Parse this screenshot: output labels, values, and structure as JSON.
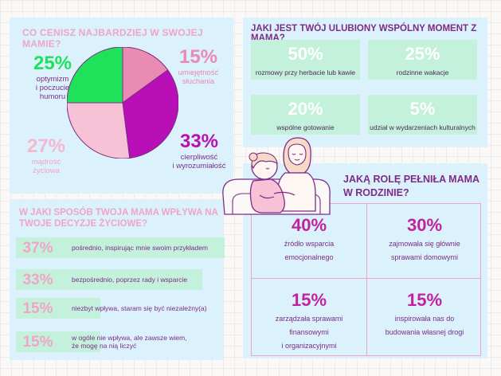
{
  "pie_panel": {
    "question": "CO CENISZ NAJBARDZIEJ W SWOJEJ MAMIE?",
    "slices": [
      {
        "pct": "25%",
        "label_lines": [
          "optymizm",
          "i poczucie",
          "humoru"
        ],
        "color": "#1ee35a",
        "value": 25
      },
      {
        "pct": "15%",
        "label_lines": [
          "umiejętność",
          "słuchania"
        ],
        "color": "#e98bb3",
        "value": 15
      },
      {
        "pct": "33%",
        "label_lines": [
          "cierpliwość",
          "i wyrozumiałość"
        ],
        "color": "#b90fb7",
        "value": 33
      },
      {
        "pct": "27%",
        "label_lines": [
          "mądrość",
          "życiowa"
        ],
        "color": "#f7c2d5",
        "value": 27
      }
    ]
  },
  "moment_panel": {
    "question": "JAKI JEST TWÓJ ULUBIONY WSPÓLNY MOMENT Z MAMĄ?",
    "items": [
      {
        "pct": "50%",
        "label": "rozmowy przy herbacie lub kawie"
      },
      {
        "pct": "25%",
        "label": "rodzinne wakacje"
      },
      {
        "pct": "20%",
        "label": "wspólne gotowanie"
      },
      {
        "pct": "5%",
        "label": "udział w wydarzeniach kulturalnych"
      }
    ]
  },
  "influence_panel": {
    "question_lines": [
      "W JAKI SPOSÓB TWOJA MAMA WPŁYWA NA",
      "TWOJE DECYZJE ŻYCIOWE?"
    ],
    "items": [
      {
        "pct": "37%",
        "label_lines": [
          "pośrednio, inspirując mnie swoim przykładem"
        ],
        "value": 37
      },
      {
        "pct": "33%",
        "label_lines": [
          "bezpośrednio, poprzez rady i wsparcie"
        ],
        "value": 33
      },
      {
        "pct": "15%",
        "label_lines": [
          "niezbyt wpływa, staram się być niezależny(a)"
        ],
        "value": 15
      },
      {
        "pct": "15%",
        "label_lines": [
          "w ogóle nie wpływa, ale zawsze wiem,",
          "że mogę na nią liczyć"
        ],
        "value": 15
      }
    ]
  },
  "role_panel": {
    "question_lines": [
      "JAKĄ ROLĘ PEŁNIŁA MAMA",
      "W RODZINIE?"
    ],
    "items": [
      {
        "pct": "40%",
        "label_lines": [
          "źródło wsparcia",
          "emocjonalnego"
        ]
      },
      {
        "pct": "30%",
        "label_lines": [
          "zajmowała się głównie",
          "sprawami domowymi"
        ]
      },
      {
        "pct": "15%",
        "label_lines": [
          "zarządzała sprawami",
          "finansowymi",
          "i organizacyjnymi"
        ]
      },
      {
        "pct": "15%",
        "label_lines": [
          "inspirowała nas do",
          "budowania własnej drogi"
        ]
      }
    ]
  },
  "chart_data": [
    {
      "type": "pie",
      "title": "CO CENISZ NAJBARDZIEJ W SWOJEJ MAMIE?",
      "categories": [
        "optymizm i poczucie humoru",
        "umiejętność słuchania",
        "cierpliwość i wyrozumiałość",
        "mądrość życiowa"
      ],
      "values": [
        25,
        15,
        33,
        27
      ]
    },
    {
      "type": "table",
      "title": "JAKI JEST TWÓJ ULUBIONY WSPÓLNY MOMENT Z MAMĄ?",
      "categories": [
        "rozmowy przy herbacie lub kawie",
        "rodzinne wakacje",
        "wspólne gotowanie",
        "udział w wydarzeniach kulturalnych"
      ],
      "values": [
        50,
        25,
        20,
        5
      ]
    },
    {
      "type": "bar",
      "title": "W JAKI SPOSÓB TWOJA MAMA WPŁYWA NA TWOJE DECYZJE ŻYCIOWE?",
      "categories": [
        "pośrednio, inspirując mnie swoim przykładem",
        "bezpośrednio, poprzez rady i wsparcie",
        "niezbyt wpływa, staram się być niezależny(a)",
        "w ogóle nie wpływa, ale zawsze wiem, że mogę na nią liczyć"
      ],
      "values": [
        37,
        33,
        15,
        15
      ]
    },
    {
      "type": "table",
      "title": "JAKĄ ROLĘ PEŁNIŁA MAMA W RODZINIE?",
      "categories": [
        "źródło wsparcia emocjonalnego",
        "zajmowała się głównie sprawami domowymi",
        "zarządzała sprawami finansowymi i organizacyjnymi",
        "inspirowała nas do budowania własnej drogi"
      ],
      "values": [
        40,
        30,
        15,
        15
      ]
    }
  ],
  "colors": {
    "panel_bg": "#dbf1fb",
    "mint": "#c4f1dc",
    "pink": "#f0a5c6",
    "purple": "#7c2c86",
    "magenta": "#c2229e",
    "green": "#1ee35a"
  }
}
